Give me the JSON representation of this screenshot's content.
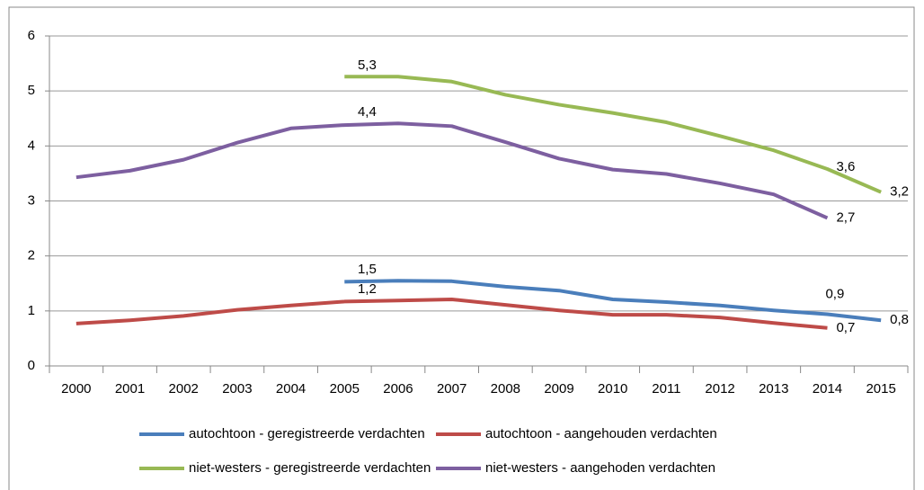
{
  "chart_data": {
    "type": "line",
    "categories": [
      "2000",
      "2001",
      "2002",
      "2003",
      "2004",
      "2005",
      "2006",
      "2007",
      "2008",
      "2009",
      "2010",
      "2011",
      "2012",
      "2013",
      "2014",
      "2015"
    ],
    "ylim": [
      0,
      6
    ],
    "yticks": [
      0,
      1,
      2,
      3,
      4,
      5,
      6
    ],
    "grid": true,
    "legend": "bottom",
    "series": [
      {
        "name": "autochtoon - geregistreerde verdachten",
        "color": "#4a7ebb",
        "values": [
          null,
          null,
          null,
          null,
          null,
          1.53,
          1.55,
          1.54,
          1.44,
          1.37,
          1.21,
          1.16,
          1.1,
          1.01,
          0.94,
          0.83
        ],
        "value_labels": [
          null,
          null,
          null,
          null,
          null,
          null,
          "1,5",
          null,
          null,
          null,
          null,
          null,
          null,
          null,
          "0,9",
          "0,8"
        ]
      },
      {
        "name": "autochtoon - aangehouden verdachten",
        "color": "#be4b48",
        "values": [
          0.77,
          0.83,
          0.91,
          1.02,
          1.1,
          1.17,
          1.19,
          1.21,
          1.11,
          1.01,
          0.93,
          0.93,
          0.88,
          0.78,
          0.69,
          null
        ],
        "value_labels": [
          null,
          null,
          null,
          null,
          null,
          null,
          "1,2",
          null,
          null,
          null,
          null,
          null,
          null,
          null,
          "0,7",
          null
        ]
      },
      {
        "name": "niet-westers - geregistreerde verdachten",
        "color": "#98b954",
        "values": [
          null,
          null,
          null,
          null,
          null,
          5.26,
          5.26,
          5.17,
          4.93,
          4.75,
          4.6,
          4.43,
          4.18,
          3.92,
          3.58,
          3.16
        ],
        "value_labels": [
          null,
          null,
          null,
          null,
          null,
          null,
          "5,3",
          null,
          null,
          null,
          null,
          null,
          null,
          null,
          "3,6",
          "3,2"
        ]
      },
      {
        "name": "niet-westers - aangehoden verdachten",
        "color": "#7d5fa0",
        "values": [
          3.43,
          3.55,
          3.75,
          4.06,
          4.32,
          4.38,
          4.41,
          4.36,
          4.07,
          3.77,
          3.57,
          3.49,
          3.32,
          3.12,
          2.69,
          null
        ],
        "value_labels": [
          null,
          null,
          null,
          null,
          null,
          null,
          "4,4",
          null,
          null,
          null,
          null,
          null,
          null,
          null,
          "2,7",
          null
        ]
      }
    ]
  }
}
